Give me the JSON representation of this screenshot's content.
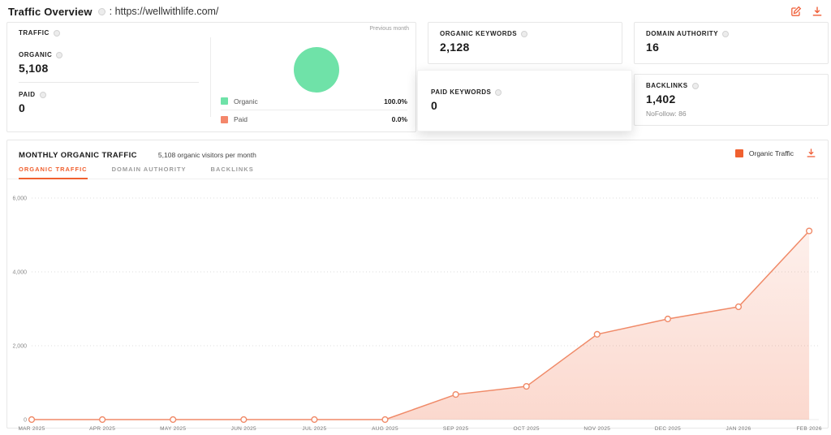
{
  "page": {
    "title": "Traffic Overview",
    "url": ": https://wellwithlife.com/"
  },
  "colors": {
    "accent_orange": "#f0602f",
    "line_salmon": "#f08a68",
    "organic_green": "#6fe2a8",
    "paid_salmon": "#f4876b"
  },
  "traffic_card": {
    "title": "TRAFFIC",
    "previous_month": "Previous month",
    "organic_label": "ORGANIC",
    "organic_value": "5,108",
    "paid_label": "PAID",
    "paid_value": "0",
    "pie_legend": [
      {
        "label": "Organic",
        "pct": "100.0%",
        "color": "#6fe2a8"
      },
      {
        "label": "Paid",
        "pct": "0.0%",
        "color": "#f4876b"
      }
    ]
  },
  "stat_cards": {
    "organic_keywords": {
      "label": "ORGANIC KEYWORDS",
      "value": "2,128"
    },
    "domain_authority": {
      "label": "DOMAIN AUTHORITY",
      "value": "16"
    },
    "paid_keywords": {
      "label": "PAID KEYWORDS",
      "value": "0"
    },
    "backlinks": {
      "label": "BACKLINKS",
      "value": "1,402",
      "sub": "NoFollow: 86"
    }
  },
  "monthly": {
    "title": "MONTHLY ORGANIC TRAFFIC",
    "subtitle": "5,108 organic visitors per month",
    "legend_label": "Organic Traffic",
    "tabs": [
      {
        "label": "ORGANIC TRAFFIC",
        "active": true
      },
      {
        "label": "DOMAIN AUTHORITY",
        "active": false
      },
      {
        "label": "BACKLINKS",
        "active": false
      }
    ]
  },
  "chart_data": {
    "type": "line",
    "title": "Monthly Organic Traffic",
    "x": [
      "MAR 2025",
      "APR 2025",
      "MAY 2025",
      "JUN 2025",
      "JUL 2025",
      "AUG 2025",
      "SEP 2025",
      "OCT 2025",
      "NOV 2025",
      "DEC 2025",
      "JAN 2026",
      "FEB 2026"
    ],
    "series": [
      {
        "name": "Organic Traffic",
        "values": [
          0,
          0,
          0,
          0,
          0,
          0,
          680,
          900,
          2310,
          2725,
          3055,
          5108
        ]
      }
    ],
    "ylim": [
      0,
      6000
    ],
    "yticks": [
      0,
      2000,
      4000,
      6000
    ],
    "ytick_labels": [
      "0",
      "2,000",
      "4,000",
      "6,000"
    ],
    "grid": "dotted-horizontal",
    "legend_position": "top-right",
    "line_color": "#f08a68",
    "marker": "hollow-circle",
    "area_fill_top": "rgba(240,106,66,0.10)",
    "area_fill_bottom": "rgba(240,106,66,0.26)"
  }
}
